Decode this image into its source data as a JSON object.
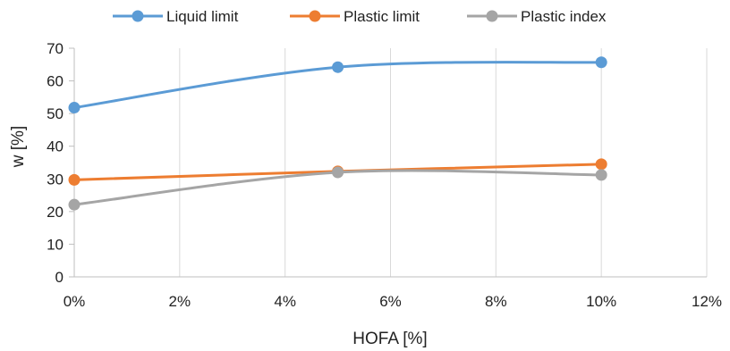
{
  "chart_data": {
    "type": "line",
    "x": [
      0,
      5,
      10
    ],
    "x_ticks": [
      "0%",
      "2%",
      "4%",
      "6%",
      "8%",
      "10%",
      "12%"
    ],
    "xlim": [
      0,
      12
    ],
    "y_ticks": [
      "0",
      "10",
      "20",
      "30",
      "40",
      "50",
      "60",
      "70"
    ],
    "ylim": [
      0,
      70
    ],
    "xlabel": "HOFA [%]",
    "ylabel": "w [%]",
    "grid": "vertical",
    "legend_position": "top",
    "smooth": true,
    "series": [
      {
        "name": "Liquid limit",
        "values": [
          51.8,
          64.2,
          65.7
        ],
        "color": "#5b9bd5"
      },
      {
        "name": "Plastic limit",
        "values": [
          29.7,
          32.3,
          34.5
        ],
        "color": "#ed7d31"
      },
      {
        "name": "Plastic index",
        "values": [
          22.1,
          32.0,
          31.2
        ],
        "color": "#a5a5a5"
      }
    ]
  }
}
